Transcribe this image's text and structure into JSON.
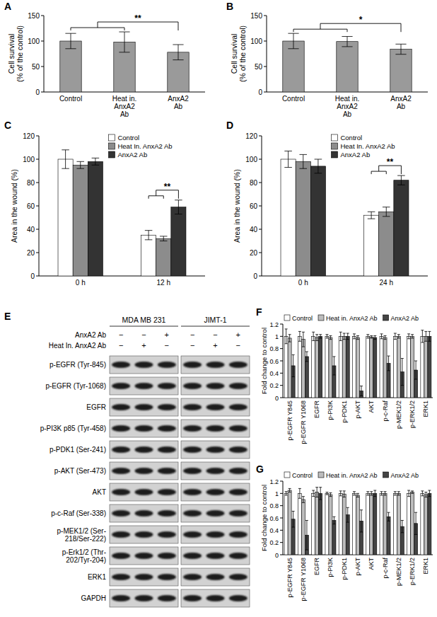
{
  "chart_data": [
    {
      "panel": "A",
      "type": "bar",
      "ylabel": "Cell survival\n(% of the control)",
      "categories": [
        "Control",
        "Heat in.\nAnxA2\nAb",
        "AnxA2\nAb"
      ],
      "values": [
        100,
        98,
        78
      ],
      "errors": [
        15,
        20,
        15
      ],
      "color": "#9a9a9a",
      "ylim": [
        0,
        150
      ],
      "yticks": [
        0,
        50,
        100,
        150
      ],
      "annotation": {
        "text": "**"
      }
    },
    {
      "panel": "B",
      "type": "bar",
      "ylabel": "Cell survival\n(% of the control)",
      "categories": [
        "Control",
        "Heat in.\nAnxA2\nAb",
        "AnxA2\nAb"
      ],
      "values": [
        100,
        99,
        84
      ],
      "errors": [
        15,
        10,
        10
      ],
      "color": "#9a9a9a",
      "ylim": [
        0,
        150
      ],
      "yticks": [
        0,
        50,
        100,
        150
      ],
      "annotation": {
        "text": "*"
      }
    },
    {
      "panel": "C",
      "type": "bar",
      "ylabel": "Area in the wound (%)",
      "legend": "top",
      "categories": [
        "0 h",
        "12 h"
      ],
      "series": [
        {
          "name": "Control",
          "color": "#ffffff",
          "values": [
            100,
            35
          ],
          "errors": [
            8,
            4
          ]
        },
        {
          "name": "Heat In. AnxA2 Ab",
          "color": "#8c8c8c",
          "values": [
            95,
            32
          ],
          "errors": [
            3,
            2
          ]
        },
        {
          "name": "AnxA2 Ab",
          "color": "#333333",
          "values": [
            98,
            59
          ],
          "errors": [
            3,
            6
          ]
        }
      ],
      "ylim": [
        0,
        120
      ],
      "yticks": [
        0,
        20,
        40,
        60,
        80,
        100,
        120
      ],
      "annotation": {
        "text": "**",
        "category": "12 h"
      }
    },
    {
      "panel": "D",
      "type": "bar",
      "ylabel": "Area in the wound (%)",
      "legend": "top",
      "categories": [
        "0 h",
        "24 h"
      ],
      "series": [
        {
          "name": "Control",
          "color": "#ffffff",
          "values": [
            100,
            52
          ],
          "errors": [
            7,
            3
          ]
        },
        {
          "name": "Heat In. AnxA2 Ab",
          "color": "#8c8c8c",
          "values": [
            98,
            55
          ],
          "errors": [
            6,
            4
          ]
        },
        {
          "name": "AnxA2 Ab",
          "color": "#333333",
          "values": [
            94,
            82
          ],
          "errors": [
            6,
            4
          ]
        }
      ],
      "ylim": [
        0,
        120
      ],
      "yticks": [
        0,
        20,
        40,
        60,
        80,
        100,
        120
      ],
      "annotation": {
        "text": "**",
        "category": "24 h"
      }
    },
    {
      "panel": "F",
      "type": "bar",
      "ylabel": "Fold change to control",
      "legend": "top",
      "categories": [
        "p-EGFR Y845",
        "p-EGFR Y1068",
        "EGFR",
        "p-PI3K",
        "p-PDK1",
        "p-AKT",
        "AKT",
        "p-c-Raf",
        "p-MEK1/2",
        "p-ERK1/2",
        "ERK1"
      ],
      "series": [
        {
          "name": "Control",
          "color": "#ffffff",
          "values": [
            1,
            1,
            1,
            1,
            1,
            1,
            1,
            1,
            1,
            1,
            1
          ],
          "errors": [
            0.12,
            0.08,
            0.07,
            0.03,
            0.07,
            0.04,
            0.03,
            0.04,
            0.05,
            0.04,
            0.1
          ]
        },
        {
          "name": "Heat in. AnxA2 Ab",
          "color": "#bdbdbd",
          "values": [
            0.97,
            0.95,
            0.98,
            0.98,
            1.0,
            0.98,
            0.99,
            0.98,
            1.0,
            1.0,
            1.0
          ],
          "errors": [
            0.06,
            0.12,
            0.05,
            0.03,
            0.05,
            0.03,
            0.02,
            0.03,
            0.03,
            0.03,
            0.08
          ]
        },
        {
          "name": "AnxA2 Ab",
          "color": "#444444",
          "values": [
            0.52,
            0.67,
            1.0,
            0.52,
            1.0,
            0.11,
            0.98,
            0.56,
            0.42,
            0.45,
            1.0
          ],
          "errors": [
            0.18,
            0.08,
            0.03,
            0.15,
            0.05,
            0.08,
            0.03,
            0.12,
            0.22,
            0.15,
            0.08
          ]
        }
      ],
      "ylim": [
        0,
        1.2
      ],
      "yticks": [
        0,
        0.2,
        0.4,
        0.6,
        0.8,
        1,
        1.2
      ]
    },
    {
      "panel": "G",
      "type": "bar",
      "ylabel": "Fold change to control",
      "legend": "top",
      "categories": [
        "p-EGFR Y845",
        "p-EGFR Y1068",
        "EGFR",
        "p-PI3K",
        "p-PDK1",
        "p-AKT",
        "AKT",
        "p-c-Raf",
        "p-MEK1/2",
        "p-ERK1/2",
        "ERK1"
      ],
      "series": [
        {
          "name": "Control",
          "color": "#ffffff",
          "values": [
            1,
            1,
            1,
            1,
            1,
            1,
            1,
            1,
            1,
            1,
            1
          ],
          "errors": [
            0.03,
            0.08,
            0.05,
            0.02,
            0.04,
            0.03,
            0.03,
            0.03,
            0.03,
            0.05,
            0.04
          ]
        },
        {
          "name": "Heat in. AnxA2 Ab",
          "color": "#bdbdbd",
          "values": [
            1.05,
            0.9,
            1.02,
            0.98,
            0.99,
            0.97,
            1.0,
            1.0,
            1.0,
            1.02,
            0.98
          ],
          "errors": [
            0.03,
            0.05,
            0.08,
            0.03,
            0.05,
            0.03,
            0.03,
            0.03,
            0.03,
            0.02,
            0.04
          ]
        },
        {
          "name": "AnxA2 Ab",
          "color": "#444444",
          "values": [
            0.58,
            0.32,
            1.0,
            0.56,
            0.65,
            0.55,
            1.0,
            0.62,
            0.46,
            0.51,
            1.0
          ],
          "errors": [
            0.13,
            0.24,
            0.1,
            0.06,
            0.12,
            0.18,
            0.05,
            0.07,
            0.1,
            0.18,
            0.05
          ]
        }
      ],
      "ylim": [
        0,
        1.2
      ],
      "yticks": [
        0,
        0.2,
        0.4,
        0.6,
        0.8,
        1,
        1.2
      ]
    }
  ],
  "blot": {
    "panel": "E",
    "cell_lines": [
      "MDA MB 231",
      "JIMT-1"
    ],
    "treatments": [
      {
        "label": "AnxA2 Ab",
        "lanes": [
          "−",
          "−",
          "+"
        ]
      },
      {
        "label": "Heat In. AnxA2 Ab",
        "lanes": [
          "−",
          "+",
          "−"
        ]
      }
    ],
    "rows": [
      "p-EGFR (Tyr-845)",
      "p-EGFR (Tyr-1068)",
      "EGFR",
      "p-PI3K p85 (Tyr-458)",
      "p-PDK1 (Ser-241)",
      "p-AKT (Ser-473)",
      "AKT",
      "p-c-Raf (Ser-338)",
      "p-MEK1/2 (Ser-\n218/Ser-222)",
      "p-Erk1/2 (Thr-\n202/Tyr-204)",
      "ERK1",
      "GAPDH"
    ]
  }
}
